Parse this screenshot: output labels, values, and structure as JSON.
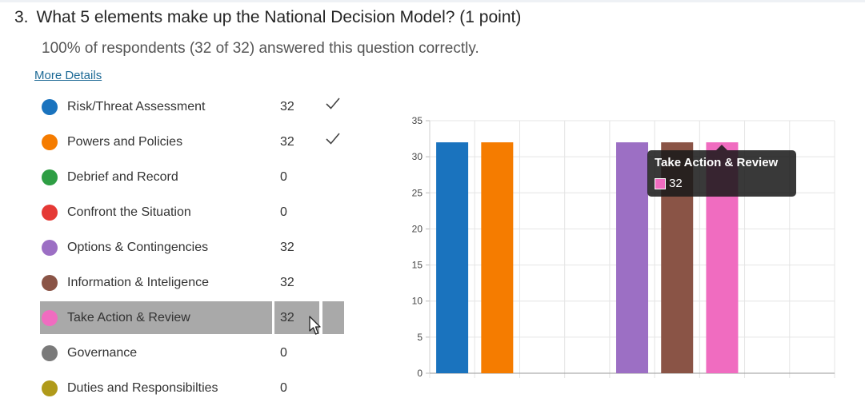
{
  "question": {
    "number": "3.",
    "title": "What 5 elements make up the National Decision Model? (1 point)",
    "summary": "100% of respondents (32 of 32) answered this question correctly.",
    "more_details": "More Details"
  },
  "options": [
    {
      "label": "Risk/Threat Assessment",
      "count": "32",
      "color": "#1a73be",
      "correct": true
    },
    {
      "label": "Powers and Policies",
      "count": "32",
      "color": "#f57c00",
      "correct": true
    },
    {
      "label": "Debrief and Record",
      "count": "0",
      "color": "#2e9e44",
      "correct": false
    },
    {
      "label": "Confront the Situation",
      "count": "0",
      "color": "#e53935",
      "correct": false
    },
    {
      "label": "Options & Contingencies",
      "count": "32",
      "color": "#9c6fc4",
      "correct": false
    },
    {
      "label": "Information & Inteligence",
      "count": "32",
      "color": "#8a5446",
      "correct": false
    },
    {
      "label": "Take Action & Review",
      "count": "32",
      "color": "#f06cc0",
      "correct": false,
      "highlighted": true
    },
    {
      "label": "Governance",
      "count": "0",
      "color": "#7a7a7a",
      "correct": false
    },
    {
      "label": "Duties and Responsibilties",
      "count": "0",
      "color": "#b09a1a",
      "correct": false
    }
  ],
  "tooltip": {
    "title": "Take Action & Review",
    "value": "32",
    "color": "#f06cc0"
  },
  "chart_data": {
    "type": "bar",
    "categories": [
      "Risk/Threat Assessment",
      "Powers and Policies",
      "Debrief and Record",
      "Confront the Situation",
      "Options & Contingencies",
      "Information & Inteligence",
      "Take Action & Review",
      "Governance",
      "Duties and Responsibilties"
    ],
    "values": [
      32,
      32,
      0,
      0,
      32,
      32,
      32,
      0,
      0
    ],
    "colors": [
      "#1a73be",
      "#f57c00",
      "#2e9e44",
      "#e53935",
      "#9c6fc4",
      "#8a5446",
      "#f06cc0",
      "#7a7a7a",
      "#b09a1a"
    ],
    "ylim": [
      0,
      35
    ],
    "yticks": [
      "0",
      "5",
      "10",
      "15",
      "20",
      "25",
      "30",
      "35"
    ],
    "grid": true
  }
}
